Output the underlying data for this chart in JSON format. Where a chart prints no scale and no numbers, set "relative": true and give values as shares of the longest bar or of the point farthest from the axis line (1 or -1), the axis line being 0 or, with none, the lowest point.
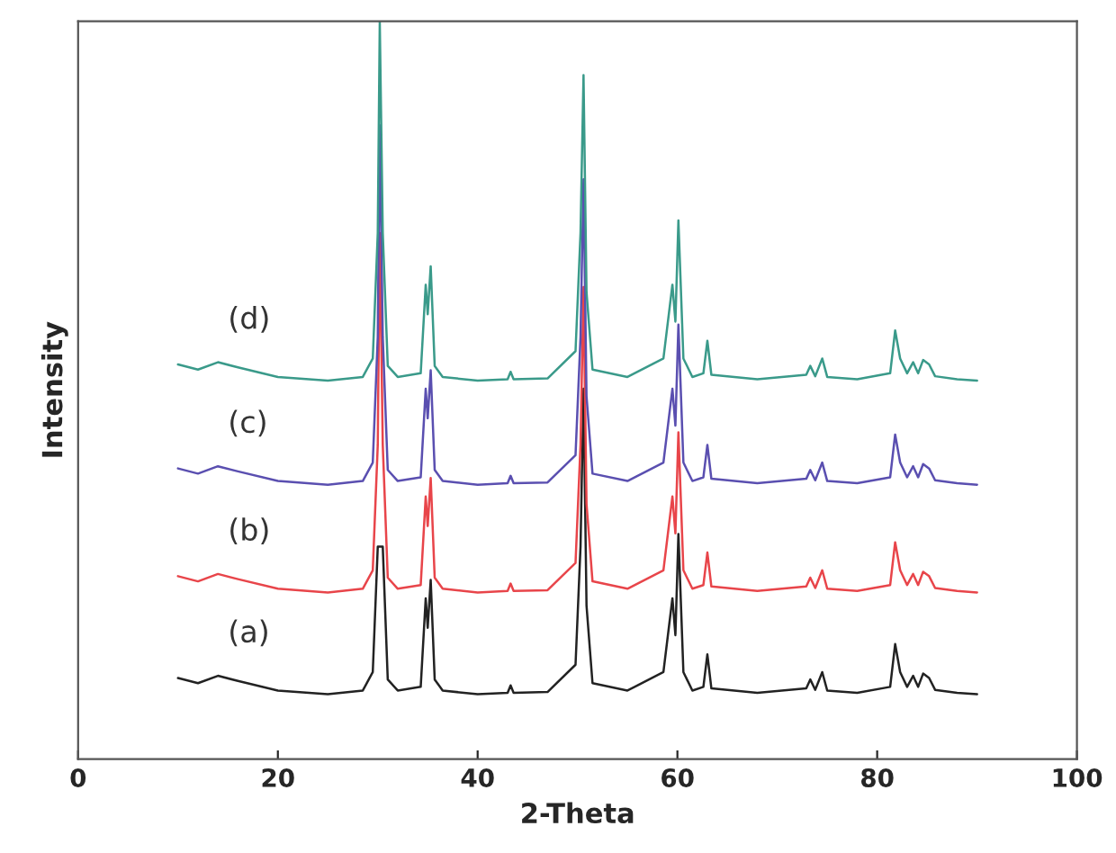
{
  "chart_data": {
    "type": "line",
    "xlabel": "2-Theta",
    "ylabel": "Intensity",
    "relative": true,
    "xlim": [
      0,
      100
    ],
    "xticks": [
      0,
      20,
      40,
      60,
      80,
      100
    ],
    "grid": false,
    "legend": false,
    "x": [
      10,
      12,
      14,
      16,
      20,
      25,
      28.5,
      29.5,
      30.0,
      30.2,
      30.5,
      31.0,
      32,
      34.3,
      34.8,
      35.0,
      35.3,
      35.7,
      36.5,
      40,
      43,
      43.3,
      43.6,
      47,
      49.8,
      50.3,
      50.6,
      50.9,
      51.5,
      55,
      58.6,
      59.5,
      59.8,
      60.1,
      60.6,
      61.5,
      62.6,
      63.0,
      63.4,
      68,
      72.9,
      73.3,
      73.8,
      74.5,
      75.0,
      78,
      81.3,
      81.8,
      82.3,
      83.0,
      83.6,
      84.1,
      84.6,
      85.2,
      85.8,
      88,
      90
    ],
    "series": [
      {
        "name": "(a)",
        "color": "#222222",
        "values": [
          0.11,
          0.103,
          0.113,
          0.106,
          0.093,
          0.088,
          0.093,
          0.118,
          0.288,
          null,
          0.288,
          0.108,
          0.093,
          0.098,
          0.218,
          0.178,
          0.243,
          0.108,
          0.093,
          0.088,
          0.09,
          0.1,
          0.09,
          0.091,
          0.128,
          0.288,
          0.502,
          0.208,
          0.103,
          0.093,
          0.118,
          0.218,
          0.168,
          0.305,
          0.118,
          0.093,
          0.098,
          0.142,
          0.096,
          0.09,
          0.096,
          0.108,
          0.094,
          0.118,
          0.093,
          0.09,
          0.098,
          0.156,
          0.118,
          0.098,
          0.113,
          0.098,
          0.116,
          0.11,
          0.094,
          0.09,
          0.088
        ]
      },
      {
        "name": "(b)",
        "color": "#e8454a",
        "values": [
          0.248,
          0.241,
          0.251,
          0.244,
          0.231,
          0.226,
          0.231,
          0.256,
          0.426,
          0.713,
          0.426,
          0.246,
          0.231,
          0.236,
          0.356,
          0.316,
          0.381,
          0.246,
          0.231,
          0.226,
          0.228,
          0.238,
          0.228,
          0.229,
          0.266,
          0.426,
          0.64,
          0.346,
          0.241,
          0.231,
          0.256,
          0.356,
          0.306,
          0.443,
          0.256,
          0.231,
          0.236,
          0.28,
          0.234,
          0.228,
          0.234,
          0.246,
          0.232,
          0.256,
          0.231,
          0.228,
          0.236,
          0.294,
          0.256,
          0.236,
          0.251,
          0.236,
          0.254,
          0.248,
          0.232,
          0.228,
          0.226
        ]
      },
      {
        "name": "(c)",
        "color": "#5a4fb0",
        "values": [
          0.394,
          0.387,
          0.397,
          0.39,
          0.377,
          0.372,
          0.377,
          0.402,
          0.572,
          0.859,
          0.572,
          0.392,
          0.377,
          0.382,
          0.502,
          0.462,
          0.527,
          0.392,
          0.377,
          0.372,
          0.374,
          0.384,
          0.374,
          0.375,
          0.412,
          0.572,
          0.786,
          0.492,
          0.387,
          0.377,
          0.402,
          0.502,
          0.452,
          0.589,
          0.402,
          0.377,
          0.382,
          0.426,
          0.38,
          0.374,
          0.38,
          0.392,
          0.378,
          0.402,
          0.377,
          0.374,
          0.382,
          0.44,
          0.402,
          0.382,
          0.397,
          0.382,
          0.4,
          0.394,
          0.378,
          0.374,
          0.372
        ]
      },
      {
        "name": "(d)",
        "color": "#3a9a8a",
        "values": [
          0.535,
          0.528,
          0.538,
          0.531,
          0.518,
          0.513,
          0.518,
          0.543,
          0.713,
          1.0,
          0.713,
          0.533,
          0.518,
          0.523,
          0.643,
          0.603,
          0.668,
          0.533,
          0.518,
          0.513,
          0.515,
          0.525,
          0.515,
          0.516,
          0.553,
          0.713,
          0.927,
          0.633,
          0.528,
          0.518,
          0.543,
          0.643,
          0.593,
          0.73,
          0.543,
          0.518,
          0.523,
          0.567,
          0.521,
          0.515,
          0.521,
          0.533,
          0.519,
          0.543,
          0.518,
          0.515,
          0.523,
          0.581,
          0.543,
          0.523,
          0.538,
          0.523,
          0.541,
          0.535,
          0.519,
          0.515,
          0.513
        ]
      }
    ]
  }
}
